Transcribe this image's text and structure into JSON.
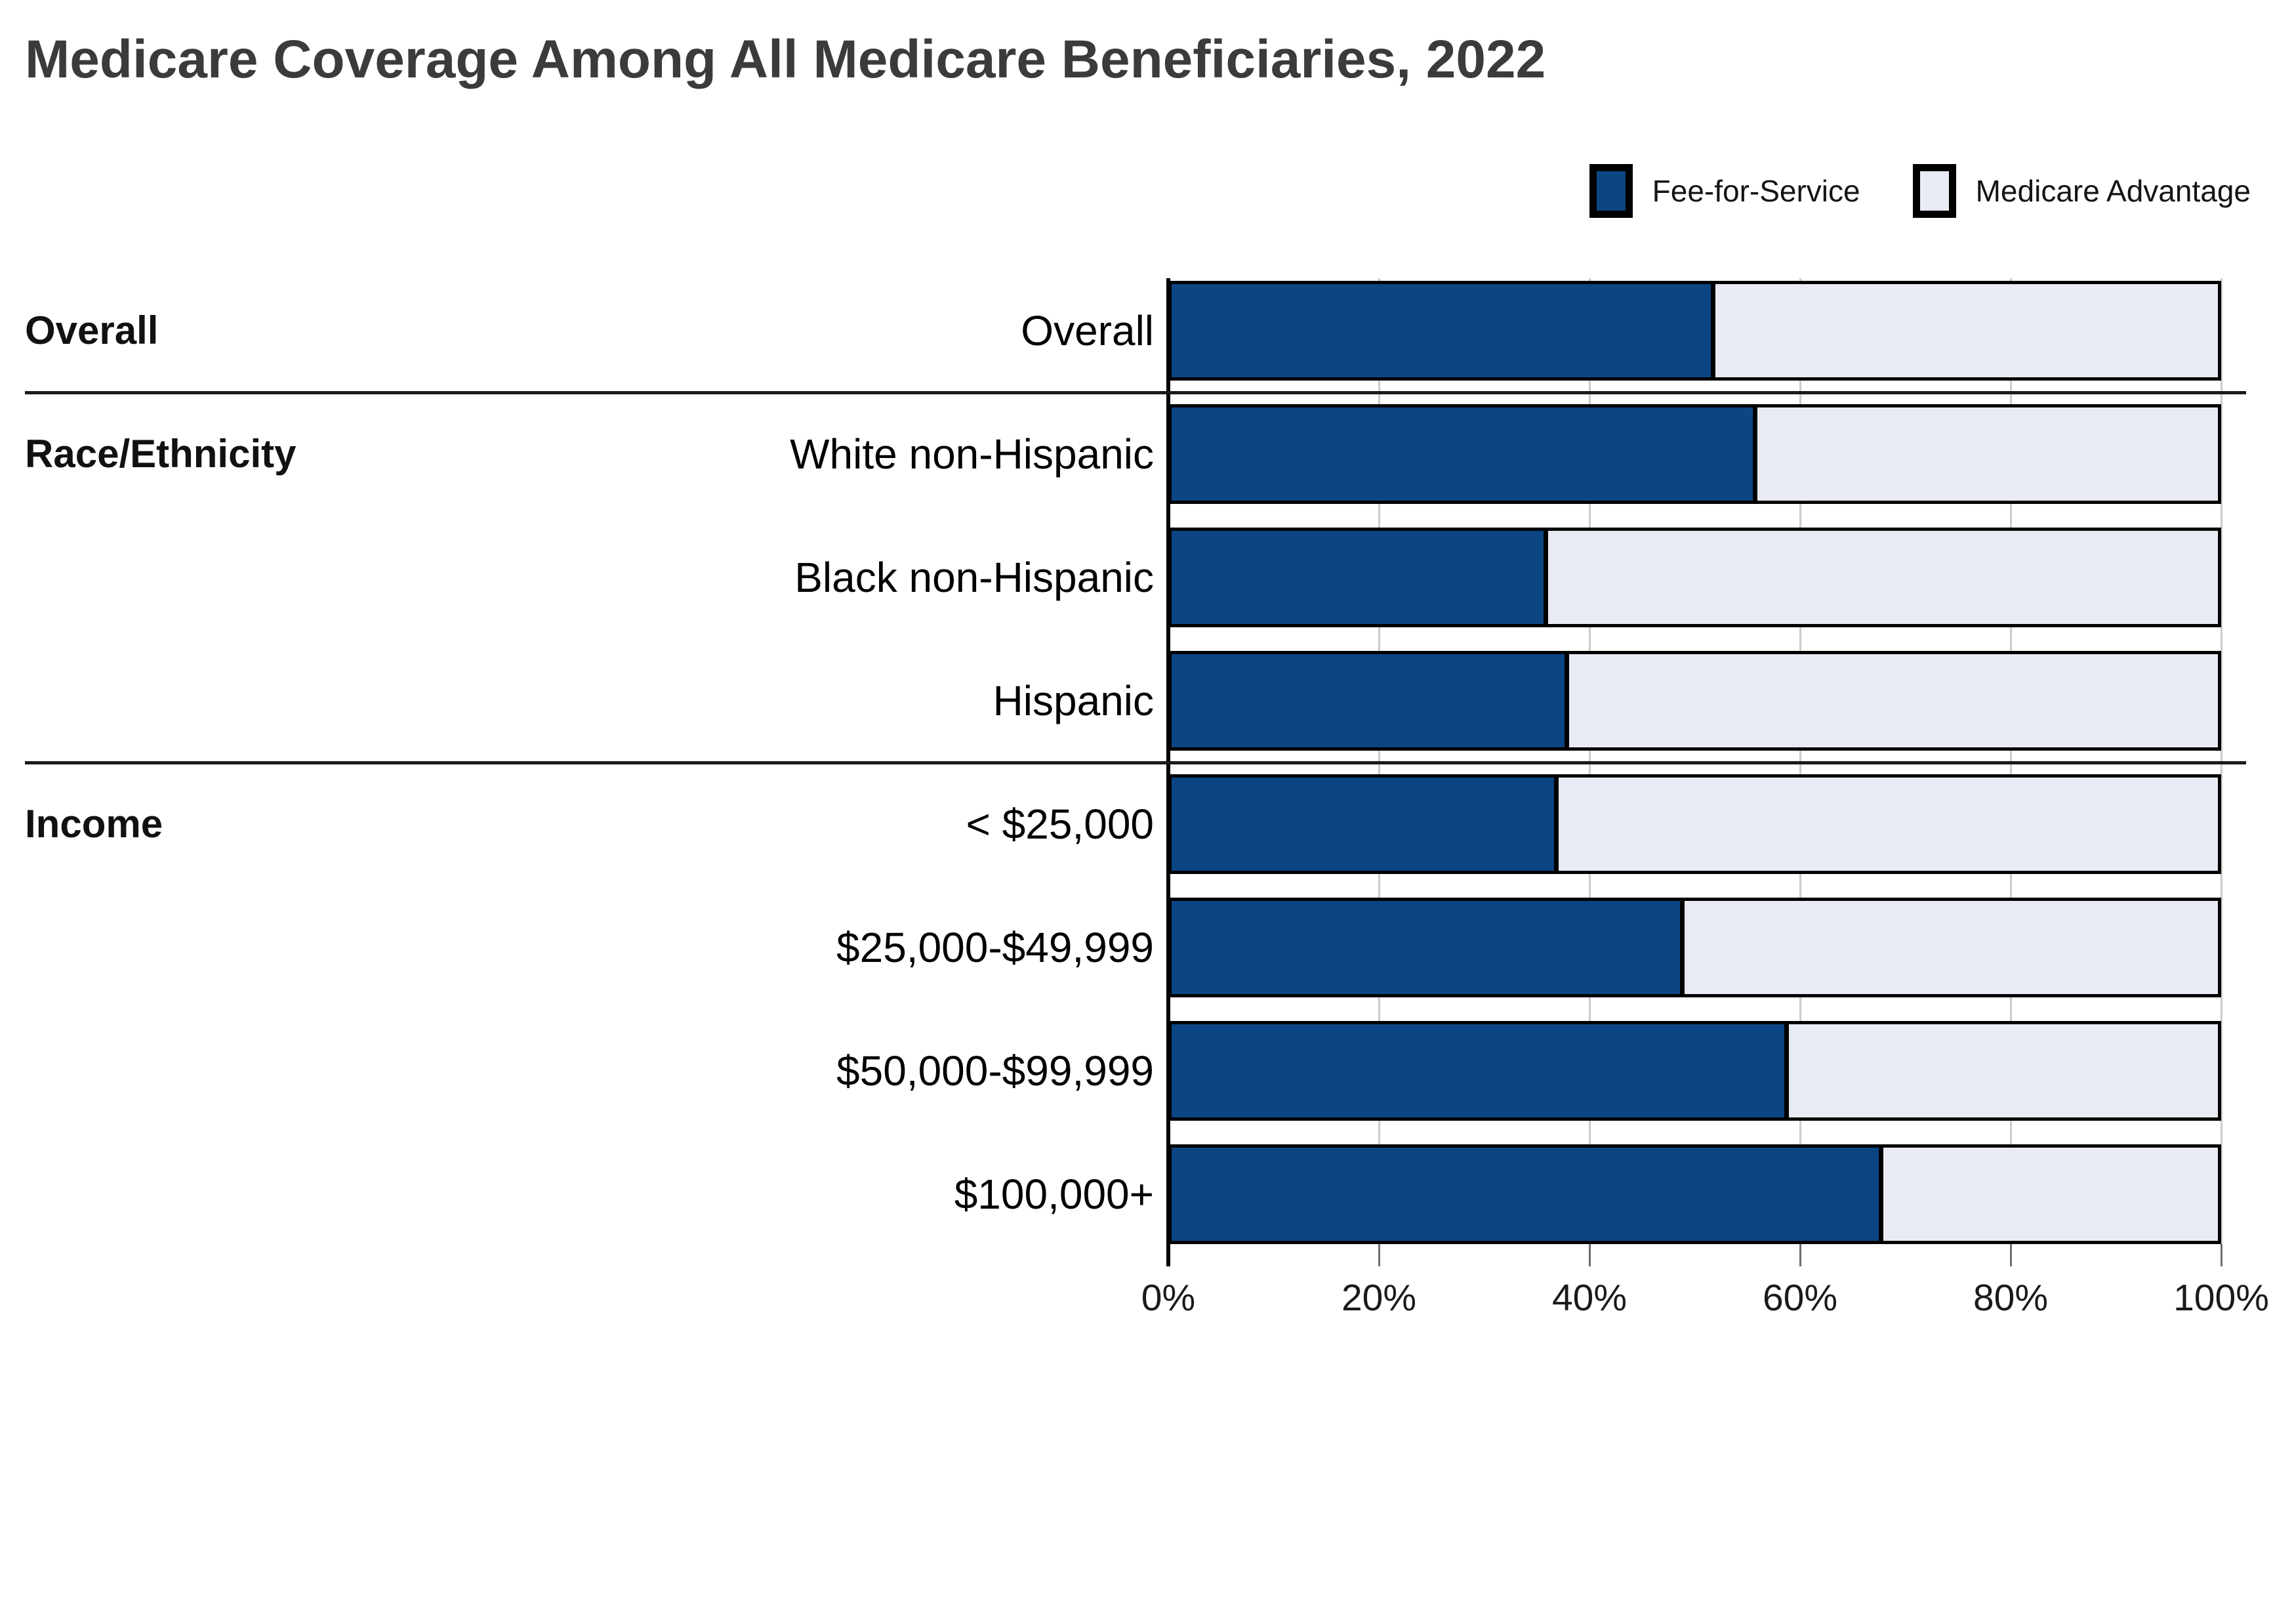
{
  "title": "Medicare Coverage Among All Medicare Beneficiaries, 2022",
  "legend": {
    "items": [
      {
        "label": "Fee-for-Service",
        "color": "#0c4583"
      },
      {
        "label": "Medicare Advantage",
        "color": "#e8ebf4"
      }
    ]
  },
  "chart_data": {
    "type": "bar",
    "orientation": "horizontal",
    "stacked": true,
    "unit": "percent",
    "title": "Medicare Coverage Among All Medicare Beneficiaries, 2022",
    "x_axis": {
      "range": [
        0,
        100
      ],
      "tick_percents": [
        0,
        20,
        40,
        60,
        80,
        100
      ],
      "tick_labels": [
        "0%",
        "20%",
        "40%",
        "60%",
        "80%",
        "100%"
      ],
      "gridlines": true
    },
    "sections": [
      {
        "header": "Overall",
        "rows": [
          "Overall"
        ]
      },
      {
        "header": "Race/Ethnicity",
        "rows": [
          "White non-Hispanic",
          "Black non-Hispanic",
          "Hispanic"
        ]
      },
      {
        "header": "Income",
        "rows": [
          "< $25,000",
          "$25,000-$49,999",
          "$50,000-$99,999",
          "$100,000+"
        ]
      }
    ],
    "categories": [
      "Overall",
      "White non-Hispanic",
      "Black non-Hispanic",
      "Hispanic",
      "< $25,000",
      "$25,000-$49,999",
      "$50,000-$99,999",
      "$100,000+"
    ],
    "series": [
      {
        "name": "Fee-for-Service",
        "color": "#0c4583",
        "values": [
          52,
          56,
          36,
          38,
          37,
          49,
          59,
          68
        ]
      },
      {
        "name": "Medicare Advantage",
        "color": "#e8ebf4",
        "values": [
          48,
          44,
          64,
          62,
          63,
          51,
          41,
          32
        ]
      }
    ]
  }
}
